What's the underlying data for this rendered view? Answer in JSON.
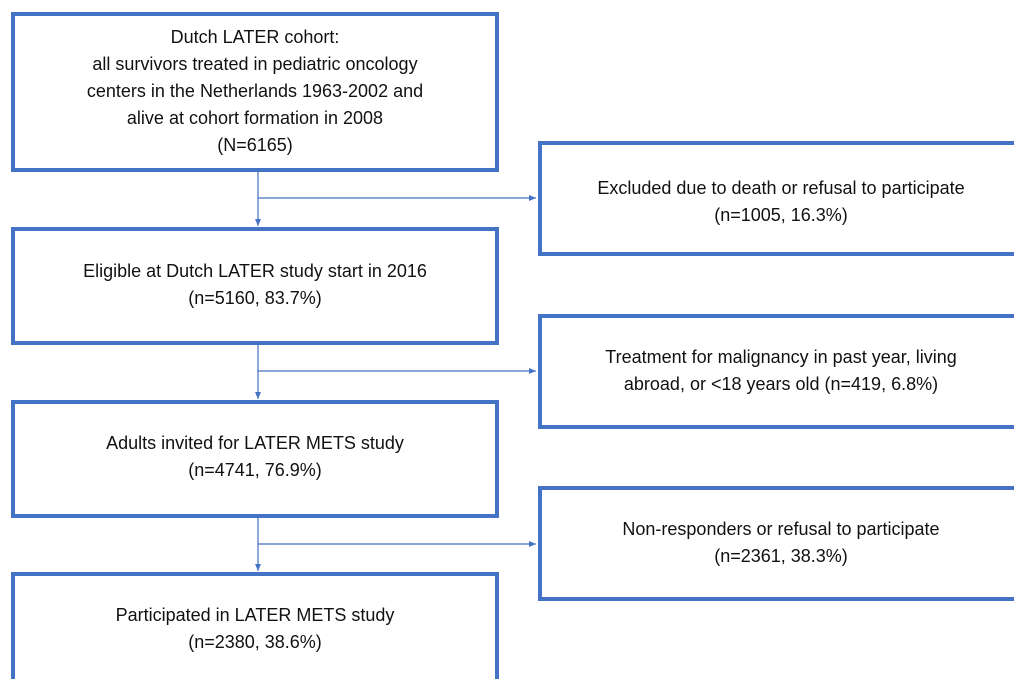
{
  "nodes": [
    {
      "lines": [
        "Dutch LATER cohort:",
        "all survivors treated in pediatric oncology",
        "centers in the Netherlands 1963-2002 and",
        "alive at cohort formation in 2008",
        "(N=6165)"
      ]
    },
    {
      "lines": [
        "Eligible at Dutch LATER study start in 2016",
        "(n=5160, 83.7%)"
      ]
    },
    {
      "lines": [
        "Adults invited for LATER METS study",
        "(n=4741, 76.9%)"
      ]
    },
    {
      "lines": [
        "Participated in LATER METS study",
        "(n=2380, 38.6%)"
      ]
    }
  ],
  "exclusions": [
    {
      "lines": [
        "Excluded due to death or refusal to participate",
        "(n=1005, 16.3%)"
      ]
    },
    {
      "lines": [
        "Treatment for malignancy in past year, living",
        "abroad, or <18 years old (n=419, 6.8%)"
      ]
    },
    {
      "lines": [
        "Non-responders or refusal to participate",
        "(n=2361, 38.3%)"
      ]
    }
  ]
}
